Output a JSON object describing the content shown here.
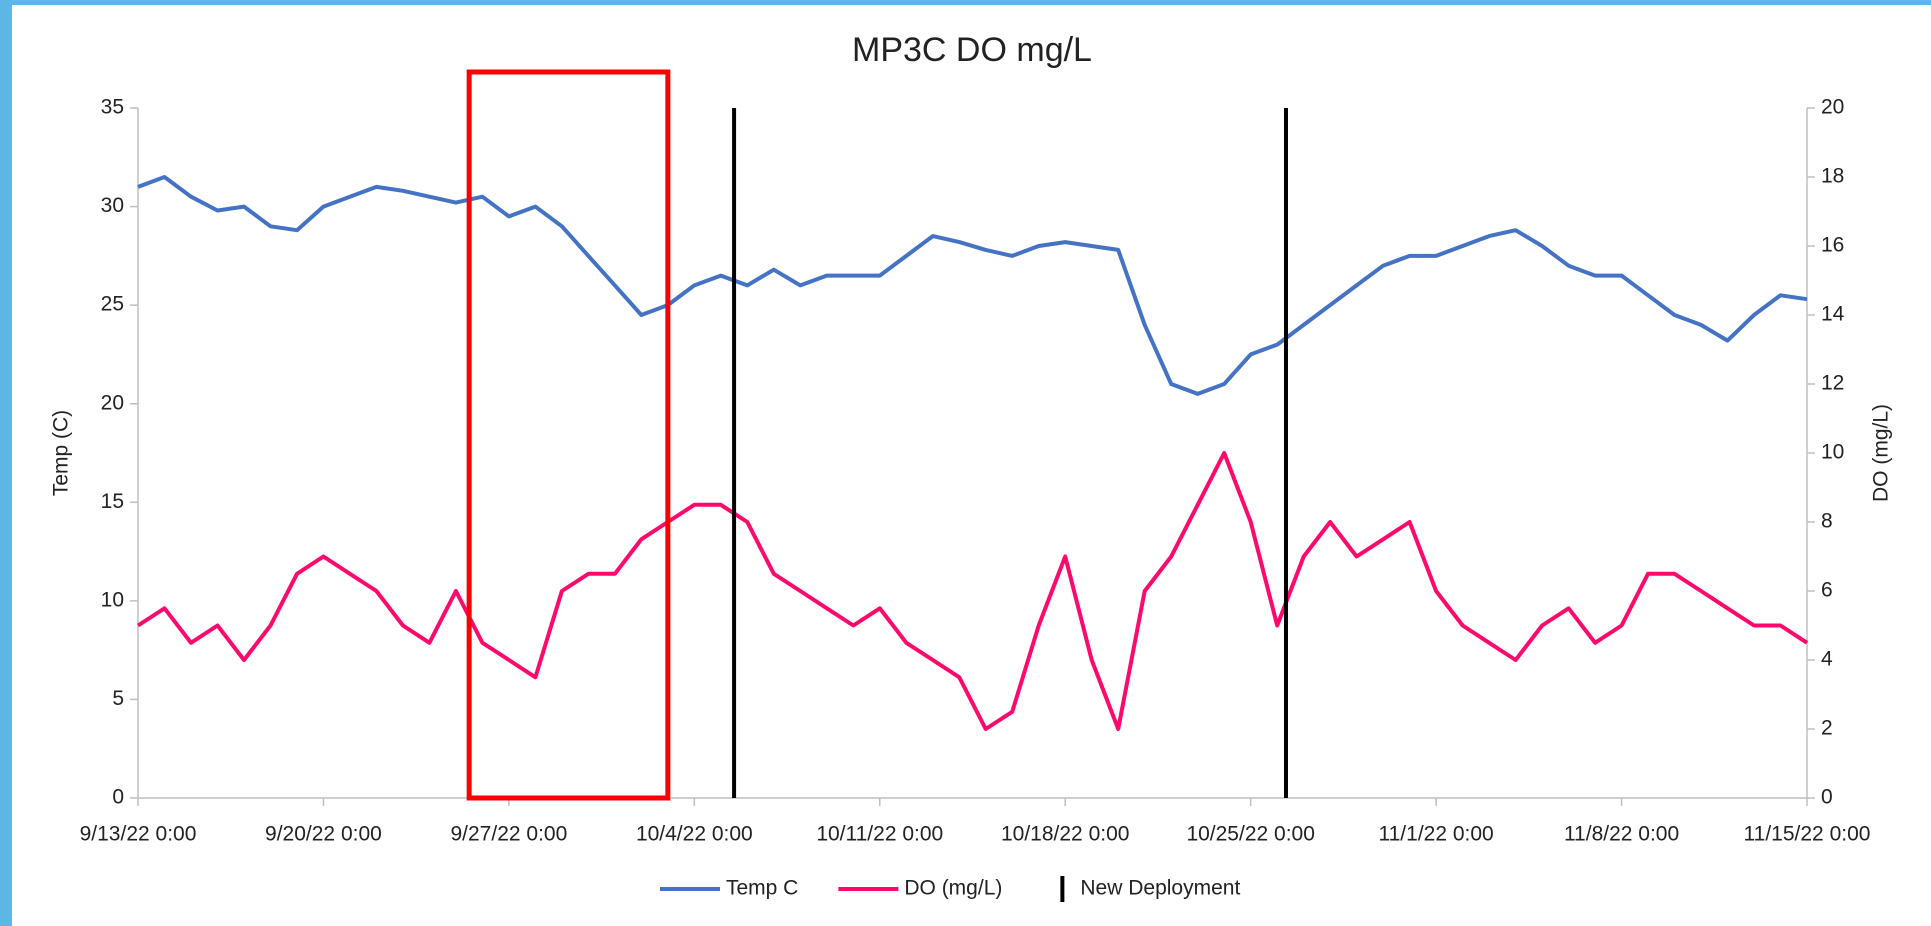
{
  "chart_data": {
    "type": "line",
    "title": "MP3C DO mg/L",
    "ylabel": "Temp (C)",
    "y2label": "DO (mg/L)",
    "x": [
      "9/13/22 0:00",
      "9/14/22 0:00",
      "9/15/22 0:00",
      "9/16/22 0:00",
      "9/17/22 0:00",
      "9/18/22 0:00",
      "9/19/22 0:00",
      "9/20/22 0:00",
      "9/21/22 0:00",
      "9/22/22 0:00",
      "9/23/22 0:00",
      "9/24/22 0:00",
      "9/25/22 0:00",
      "9/26/22 0:00",
      "9/27/22 0:00",
      "9/28/22 0:00",
      "9/29/22 0:00",
      "9/30/22 0:00",
      "10/1/22 0:00",
      "10/2/22 0:00",
      "10/3/22 0:00",
      "10/4/22 0:00",
      "10/5/22 0:00",
      "10/6/22 0:00",
      "10/7/22 0:00",
      "10/8/22 0:00",
      "10/9/22 0:00",
      "10/10/22 0:00",
      "10/11/22 0:00",
      "10/12/22 0:00",
      "10/13/22 0:00",
      "10/14/22 0:00",
      "10/15/22 0:00",
      "10/16/22 0:00",
      "10/17/22 0:00",
      "10/18/22 0:00",
      "10/19/22 0:00",
      "10/20/22 0:00",
      "10/21/22 0:00",
      "10/22/22 0:00",
      "10/23/22 0:00",
      "10/24/22 0:00",
      "10/25/22 0:00",
      "10/26/22 0:00",
      "10/27/22 0:00",
      "10/28/22 0:00",
      "10/29/22 0:00",
      "10/30/22 0:00",
      "10/31/22 0:00",
      "11/1/22 0:00",
      "11/2/22 0:00",
      "11/3/22 0:00",
      "11/4/22 0:00",
      "11/5/22 0:00",
      "11/6/22 0:00",
      "11/7/22 0:00",
      "11/8/22 0:00",
      "11/9/22 0:00",
      "11/10/22 0:00",
      "11/11/22 0:00",
      "11/12/22 0:00",
      "11/13/22 0:00",
      "11/14/22 0:00",
      "11/15/22 0:00"
    ],
    "series": [
      {
        "name": "Temp C",
        "color": "#4472c4",
        "axis": "y",
        "values": [
          31,
          31.5,
          30.5,
          29.8,
          30,
          29,
          28.8,
          30,
          30.5,
          31,
          30.8,
          30.5,
          30.2,
          30.5,
          29.5,
          30,
          29,
          27.5,
          26,
          24.5,
          25,
          26,
          26.5,
          26,
          26.8,
          26,
          26.5,
          26.5,
          26.5,
          27.5,
          28.5,
          28.2,
          27.8,
          27.5,
          28,
          28.2,
          28,
          27.8,
          24,
          21,
          20.5,
          21,
          22.5,
          23,
          24,
          25,
          26,
          27,
          27.5,
          27.5,
          28,
          28.5,
          28.8,
          28,
          27,
          26.5,
          26.5,
          25.5,
          24.5,
          24,
          23.2,
          24.5,
          25.5,
          25.3
        ]
      },
      {
        "name": "DO (mg/L)",
        "color": "#ff0a6c",
        "axis": "y2",
        "values": [
          5,
          5.5,
          4.5,
          5,
          4,
          5,
          6.5,
          7,
          6.5,
          6,
          5,
          4.5,
          6,
          4.5,
          4,
          3.5,
          6,
          6.5,
          6.5,
          7.5,
          8,
          8.5,
          8.5,
          8,
          6.5,
          6,
          5.5,
          5,
          5.5,
          4.5,
          4,
          3.5,
          2,
          2.5,
          5,
          7,
          4,
          2,
          6,
          7,
          8.5,
          10,
          8,
          5,
          7,
          8,
          7,
          7.5,
          8,
          6,
          5,
          4.5,
          4,
          5,
          5.5,
          4.5,
          5,
          6.5,
          6.5,
          6,
          5.5,
          5,
          5,
          4.5
        ]
      }
    ],
    "deployments": {
      "name": "New Deployment",
      "color": "#000000",
      "x": [
        "10/5/22 12:00",
        "10/26/22 8:00"
      ]
    },
    "highlight": {
      "x": [
        "9/25/22 12:00",
        "10/3/22 0:00"
      ],
      "color": "#ff0000"
    },
    "xlim": [
      "9/13/22 0:00",
      "11/15/22 0:00"
    ],
    "xticks": [
      "9/13/22 0:00",
      "9/20/22 0:00",
      "9/27/22 0:00",
      "10/4/22 0:00",
      "10/11/22 0:00",
      "10/18/22 0:00",
      "10/25/22 0:00",
      "11/1/22 0:00",
      "11/8/22 0:00",
      "11/15/22 0:00"
    ],
    "ylim": [
      0,
      35
    ],
    "yticks": [
      0,
      5,
      10,
      15,
      20,
      25,
      30,
      35
    ],
    "y2lim": [
      0,
      20
    ],
    "y2ticks": [
      0,
      2,
      4,
      6,
      8,
      10,
      12,
      14,
      16,
      18,
      20
    ],
    "legend": "bottom"
  }
}
